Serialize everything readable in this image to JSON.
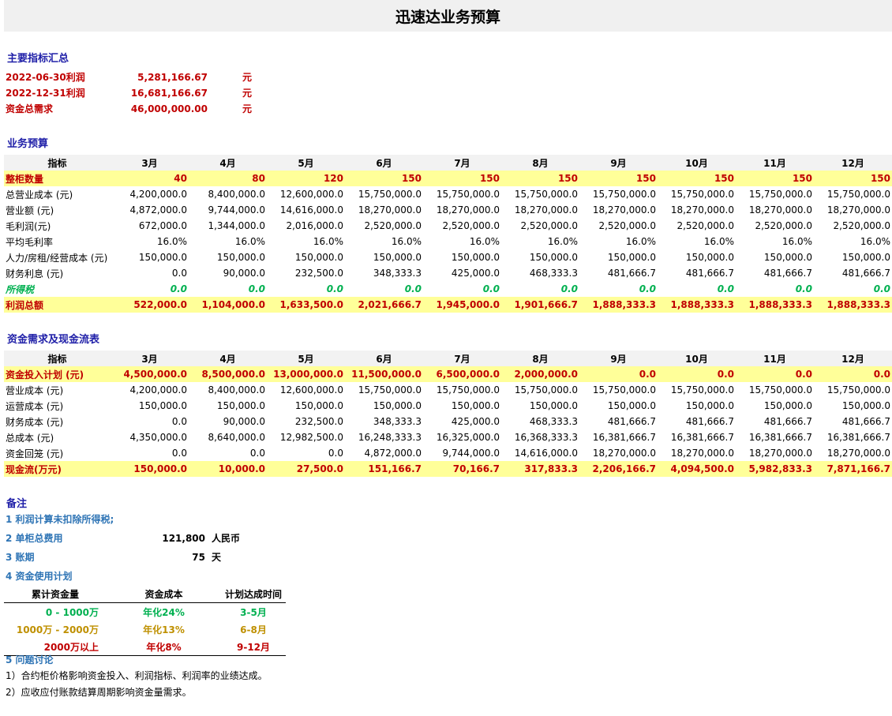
{
  "title": "迅速达业务预算",
  "summary": {
    "heading": "主要指标汇总",
    "items": [
      {
        "label": "2022-06-30利润",
        "value": "5,281,166.67",
        "unit": "元"
      },
      {
        "label": "2022-12-31利润",
        "value": "16,681,166.67",
        "unit": "元"
      },
      {
        "label": "资金总需求",
        "value": "46,000,000.00",
        "unit": "元"
      }
    ]
  },
  "budget": {
    "heading": "业务预算",
    "header": [
      "指标",
      "3月",
      "4月",
      "5月",
      "6月",
      "7月",
      "8月",
      "9月",
      "10月",
      "11月",
      "12月"
    ],
    "rows": [
      {
        "style": "hl",
        "cells": [
          "整柜数量",
          "40",
          "80",
          "120",
          "150",
          "150",
          "150",
          "150",
          "150",
          "150",
          "150"
        ]
      },
      {
        "style": "",
        "cells": [
          "总营业成本 (元)",
          "4,200,000.0",
          "8,400,000.0",
          "12,600,000.0",
          "15,750,000.0",
          "15,750,000.0",
          "15,750,000.0",
          "15,750,000.0",
          "15,750,000.0",
          "15,750,000.0",
          "15,750,000.0"
        ]
      },
      {
        "style": "",
        "cells": [
          "营业额 (元)",
          "4,872,000.0",
          "9,744,000.0",
          "14,616,000.0",
          "18,270,000.0",
          "18,270,000.0",
          "18,270,000.0",
          "18,270,000.0",
          "18,270,000.0",
          "18,270,000.0",
          "18,270,000.0"
        ]
      },
      {
        "style": "",
        "cells": [
          "毛利润(元)",
          "672,000.0",
          "1,344,000.0",
          "2,016,000.0",
          "2,520,000.0",
          "2,520,000.0",
          "2,520,000.0",
          "2,520,000.0",
          "2,520,000.0",
          "2,520,000.0",
          "2,520,000.0"
        ]
      },
      {
        "style": "",
        "cells": [
          "平均毛利率",
          "16.0%",
          "16.0%",
          "16.0%",
          "16.0%",
          "16.0%",
          "16.0%",
          "16.0%",
          "16.0%",
          "16.0%",
          "16.0%"
        ]
      },
      {
        "style": "",
        "cells": [
          "人力/房租/经营成本 (元)",
          "150,000.0",
          "150,000.0",
          "150,000.0",
          "150,000.0",
          "150,000.0",
          "150,000.0",
          "150,000.0",
          "150,000.0",
          "150,000.0",
          "150,000.0"
        ]
      },
      {
        "style": "",
        "cells": [
          "财务利息 (元)",
          "0.0",
          "90,000.0",
          "232,500.0",
          "348,333.3",
          "425,000.0",
          "468,333.3",
          "481,666.7",
          "481,666.7",
          "481,666.7",
          "481,666.7"
        ]
      },
      {
        "style": "tax",
        "cells": [
          "所得税",
          "0.0",
          "0.0",
          "0.0",
          "0.0",
          "0.0",
          "0.0",
          "0.0",
          "0.0",
          "0.0",
          "0.0"
        ]
      },
      {
        "style": "hl",
        "cells": [
          "利润总额",
          "522,000.0",
          "1,104,000.0",
          "1,633,500.0",
          "2,021,666.7",
          "1,945,000.0",
          "1,901,666.7",
          "1,888,333.3",
          "1,888,333.3",
          "1,888,333.3",
          "1,888,333.3"
        ]
      }
    ]
  },
  "cashflow": {
    "heading": "资金需求及现金流表",
    "header": [
      "指标",
      "3月",
      "4月",
      "5月",
      "6月",
      "7月",
      "8月",
      "9月",
      "10月",
      "11月",
      "12月"
    ],
    "rows": [
      {
        "style": "hl",
        "cells": [
          "资金投入计划 (元)",
          "4,500,000.0",
          "8,500,000.0",
          "13,000,000.0",
          "11,500,000.0",
          "6,500,000.0",
          "2,000,000.0",
          "0.0",
          "0.0",
          "0.0",
          "0.0"
        ]
      },
      {
        "style": "",
        "cells": [
          "营业成本 (元)",
          "4,200,000.0",
          "8,400,000.0",
          "12,600,000.0",
          "15,750,000.0",
          "15,750,000.0",
          "15,750,000.0",
          "15,750,000.0",
          "15,750,000.0",
          "15,750,000.0",
          "15,750,000.0"
        ]
      },
      {
        "style": "",
        "cells": [
          "运营成本 (元)",
          "150,000.0",
          "150,000.0",
          "150,000.0",
          "150,000.0",
          "150,000.0",
          "150,000.0",
          "150,000.0",
          "150,000.0",
          "150,000.0",
          "150,000.0"
        ]
      },
      {
        "style": "",
        "cells": [
          "财务成本 (元)",
          "0.0",
          "90,000.0",
          "232,500.0",
          "348,333.3",
          "425,000.0",
          "468,333.3",
          "481,666.7",
          "481,666.7",
          "481,666.7",
          "481,666.7"
        ]
      },
      {
        "style": "",
        "cells": [
          "总成本 (元)",
          "4,350,000.0",
          "8,640,000.0",
          "12,982,500.0",
          "16,248,333.3",
          "16,325,000.0",
          "16,368,333.3",
          "16,381,666.7",
          "16,381,666.7",
          "16,381,666.7",
          "16,381,666.7"
        ]
      },
      {
        "style": "",
        "cells": [
          "资金回笼 (元)",
          "0.0",
          "0.0",
          "0.0",
          "4,872,000.0",
          "9,744,000.0",
          "14,616,000.0",
          "18,270,000.0",
          "18,270,000.0",
          "18,270,000.0",
          "18,270,000.0"
        ]
      },
      {
        "style": "hl",
        "cells": [
          "现金流(万元)",
          "150,000.0",
          "10,000.0",
          "27,500.0",
          "151,166.7",
          "70,166.7",
          "317,833.3",
          "2,206,166.7",
          "4,094,500.0",
          "5,982,833.3",
          "7,871,166.7"
        ]
      }
    ]
  },
  "notes": {
    "heading": "备注",
    "n1": "1 利润计算未扣除所得税;",
    "n2_label": "2 单柜总费用",
    "n2_value": "121,800",
    "n2_unit": "人民币",
    "n3_label": "3 账期",
    "n3_value": "75",
    "n3_unit": "天",
    "n4_label": "4 资金使用计划",
    "plan_header": [
      "累计资金量",
      "资金成本",
      "计划达成时间"
    ],
    "plan_rows": [
      {
        "color": "#00b050",
        "cells": [
          "0 - 1000万",
          "年化24%",
          "3-5月"
        ]
      },
      {
        "color": "#bf9000",
        "cells": [
          "1000万 - 2000万",
          "年化13%",
          "6-8月"
        ]
      },
      {
        "color": "#c00000",
        "cells": [
          "2000万以上",
          "年化8%",
          "9-12月"
        ]
      }
    ],
    "n5_label": "5 问题讨论",
    "discussion": [
      "1）合约柜价格影响资金投入、利润指标、利润率的业绩达成。",
      "2）应收应付账款结算周期影响资金量需求。"
    ]
  }
}
